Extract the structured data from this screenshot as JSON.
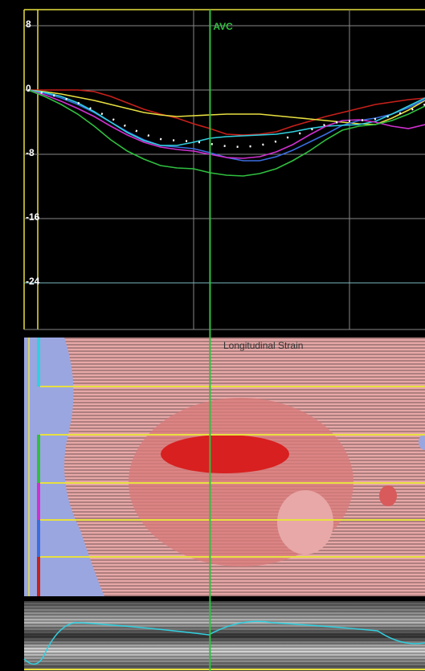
{
  "chart_data": {
    "type": "line",
    "x": [
      0,
      1,
      2,
      3,
      4,
      5,
      6,
      7,
      8,
      9,
      10,
      11,
      12,
      13,
      14,
      15,
      16,
      17,
      18,
      19,
      20,
      21,
      22,
      23,
      24
    ],
    "xlim": [
      0,
      24
    ],
    "ylim": [
      -30,
      10
    ],
    "yticks": [
      8,
      0,
      -8,
      -16,
      -24
    ],
    "grid": true,
    "series": [
      {
        "color": "#c8201a",
        "values": [
          0,
          0,
          0,
          0,
          -0.2,
          -0.8,
          -1.6,
          -2.4,
          -3,
          -3.5,
          -4.2,
          -4.8,
          -5.5,
          -5.6,
          -5.5,
          -5.2,
          -4.5,
          -3.9,
          -3.3,
          -2.8,
          -2.3,
          -1.8,
          -1.5,
          -1.2,
          -1
        ]
      },
      {
        "color": "#e8e040",
        "values": [
          0,
          -0.2,
          -0.5,
          -0.9,
          -1.3,
          -1.8,
          -2.3,
          -2.8,
          -3.1,
          -3.3,
          -3.2,
          -3.1,
          -3,
          -3,
          -3,
          -3.2,
          -3.4,
          -3.6,
          -3.8,
          -4,
          -4.2,
          -4.3,
          -3.5,
          -2.5,
          -1.3
        ]
      },
      {
        "color": "#3a6ee0",
        "values": [
          0,
          -0.4,
          -1,
          -1.8,
          -2.8,
          -4,
          -5.2,
          -6.2,
          -6.9,
          -7.1,
          -7.3,
          -7.8,
          -8.4,
          -8.8,
          -8.8,
          -8.3,
          -7.5,
          -6.5,
          -5.5,
          -4.4,
          -3.8,
          -3.5,
          -3,
          -2.2,
          -1.2
        ]
      },
      {
        "color": "#30d0e0",
        "values": [
          0,
          -0.3,
          -0.8,
          -1.6,
          -2.7,
          -4,
          -5.3,
          -6.3,
          -6.9,
          -6.9,
          -6.5,
          -6,
          -5.8,
          -5.7,
          -5.6,
          -5.5,
          -5.2,
          -4.8,
          -4.5,
          -4.4,
          -4.3,
          -3.9,
          -3,
          -2,
          -1
        ]
      },
      {
        "color": "#d030d0",
        "values": [
          0,
          -0.6,
          -1.4,
          -2.3,
          -3.3,
          -4.5,
          -5.6,
          -6.5,
          -7.1,
          -7.4,
          -7.6,
          -8,
          -8.4,
          -8.5,
          -8.3,
          -7.7,
          -6.8,
          -5.6,
          -4.5,
          -3.8,
          -3.7,
          -4,
          -4.5,
          -4.8,
          -4.3
        ]
      },
      {
        "color": "#30c040",
        "values": [
          0,
          -0.8,
          -1.8,
          -3,
          -4.5,
          -6.2,
          -7.6,
          -8.6,
          -9.4,
          -9.7,
          -9.8,
          -10.3,
          -10.6,
          -10.7,
          -10.4,
          -9.8,
          -8.8,
          -7.6,
          -6.2,
          -5,
          -4.5,
          -4.3,
          -3.8,
          -3,
          -2
        ]
      },
      {
        "color": "#ffffff",
        "dashed": true,
        "values": [
          0,
          -0.4,
          -0.9,
          -1.6,
          -2.5,
          -3.5,
          -4.6,
          -5.5,
          -6.1,
          -6.3,
          -6.4,
          -6.7,
          -7,
          -7.1,
          -6.9,
          -6.4,
          -5.7,
          -5,
          -4.3,
          -3.9,
          -3.8,
          -3.6,
          -3.2,
          -2.6,
          -1.8
        ]
      }
    ],
    "avc": {
      "label": "AVC",
      "x": 11
    },
    "heatmap_title": "Longitudinal Strain"
  }
}
